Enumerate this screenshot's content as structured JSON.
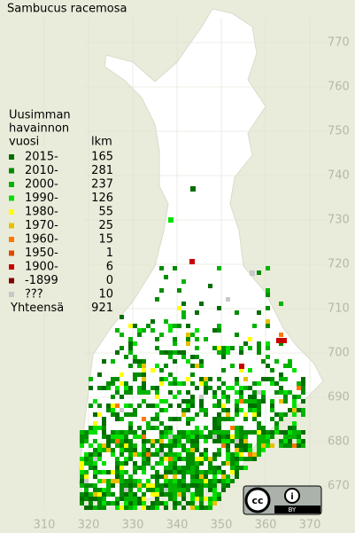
{
  "title": "Sambucus racemosa",
  "legend": {
    "heading": [
      "Uusimman",
      "havainnon",
      "vuosi"
    ],
    "count_heading": "lkm",
    "rows": [
      {
        "label": "2015-",
        "count": 165,
        "color": "#006e00"
      },
      {
        "label": "2010-",
        "count": 281,
        "color": "#008c00"
      },
      {
        "label": "2000-",
        "count": 237,
        "color": "#00b400"
      },
      {
        "label": "1990-",
        "count": 126,
        "color": "#00e000"
      },
      {
        "label": "1980-",
        "count": 55,
        "color": "#ffff00"
      },
      {
        "label": "1970-",
        "count": 25,
        "color": "#e8c000"
      },
      {
        "label": "1960-",
        "count": 15,
        "color": "#ff7800"
      },
      {
        "label": "1950-",
        "count": 1,
        "color": "#e04800"
      },
      {
        "label": "1900-",
        "count": 6,
        "color": "#c80000"
      },
      {
        "label": "-1899",
        "count": 0,
        "color": "#800000"
      },
      {
        "label": "???",
        "count": 10,
        "color": "#c8c8c8"
      }
    ],
    "total_label": "Yhteensä",
    "total": 921
  },
  "y_labels": [
    770,
    760,
    750,
    740,
    730,
    720,
    710,
    700,
    690,
    680,
    670
  ],
  "x_labels": [
    310,
    320,
    330,
    340,
    350,
    360,
    370
  ],
  "license": "BY"
}
